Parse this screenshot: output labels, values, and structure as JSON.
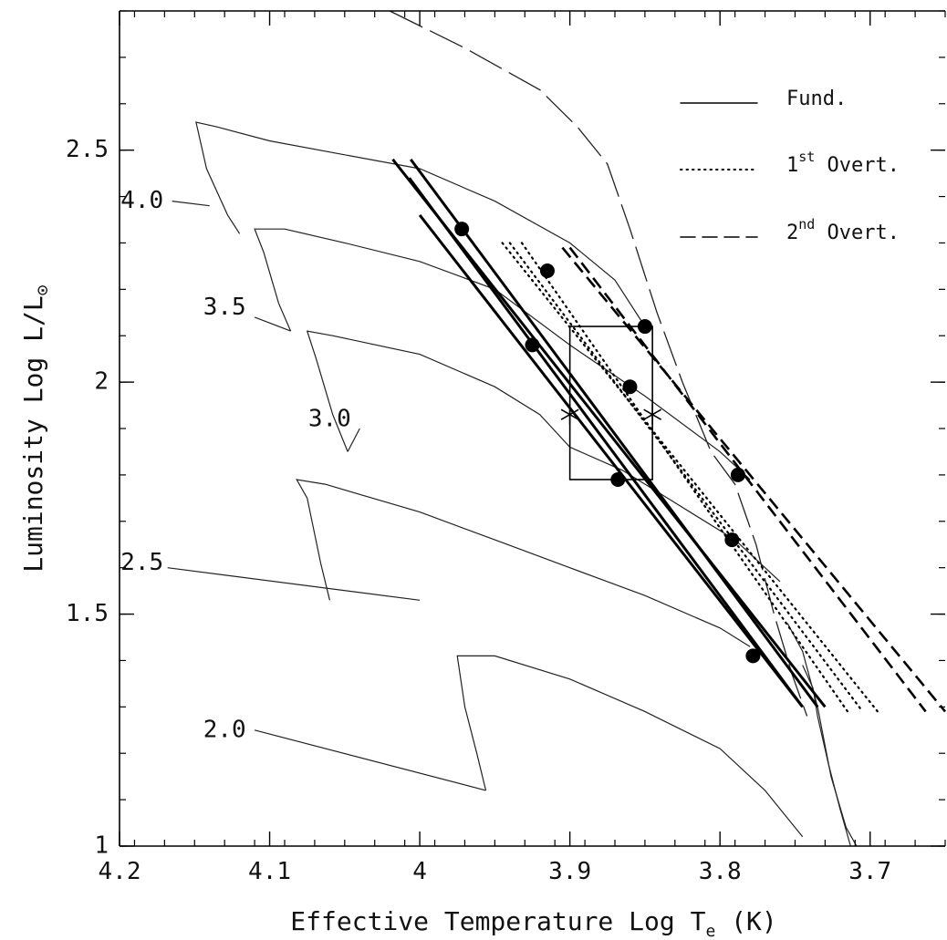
{
  "chart_data": {
    "type": "line",
    "xlabel": {
      "main": "Effective Temperature Log T",
      "sub": "e",
      "unit": " (K)"
    },
    "ylabel": {
      "main": "Luminosity Log L/L",
      "sub": "⊙"
    },
    "xlim": [
      4.2,
      3.65
    ],
    "ylim": [
      1.0,
      2.8
    ],
    "x_reversed": true,
    "xticks": [
      {
        "v": 4.2,
        "label": "4.2"
      },
      {
        "v": 4.1,
        "label": "4.1"
      },
      {
        "v": 4.0,
        "label": "4"
      },
      {
        "v": 3.9,
        "label": "3.9"
      },
      {
        "v": 3.8,
        "label": "3.8"
      },
      {
        "v": 3.7,
        "label": "3.7"
      }
    ],
    "yticks": [
      {
        "v": 1.0,
        "label": "1"
      },
      {
        "v": 1.5,
        "label": "1.5"
      },
      {
        "v": 2.0,
        "label": "2"
      },
      {
        "v": 2.5,
        "label": "2.5"
      }
    ],
    "grid": false,
    "legend_position": "top-right",
    "legend": [
      {
        "style": "solid",
        "label": "Fund.",
        "sup": ""
      },
      {
        "style": "dotted",
        "label": " Overt.",
        "prefix": "1",
        "sup": "st"
      },
      {
        "style": "dashed",
        "label": " Overt.",
        "prefix": "2",
        "sup": "nd"
      }
    ],
    "tracks": [
      {
        "mass": "4.0",
        "label_at": [
          4.185,
          2.39
        ],
        "leader": [
          [
            4.165,
            2.39
          ],
          [
            4.14,
            2.38
          ]
        ],
        "points": [
          [
            4.12,
            2.32
          ],
          [
            4.128,
            2.36
          ],
          [
            4.142,
            2.46
          ],
          [
            4.149,
            2.56
          ],
          [
            4.135,
            2.55
          ],
          [
            4.1,
            2.52
          ],
          [
            4.05,
            2.49
          ],
          [
            4.0,
            2.46
          ],
          [
            3.95,
            2.39
          ],
          [
            3.9,
            2.3
          ],
          [
            3.87,
            2.22
          ],
          [
            3.85,
            2.12
          ]
        ]
      },
      {
        "mass": "3.5",
        "label_at": [
          4.13,
          2.16
        ],
        "leader": [
          [
            4.11,
            2.14
          ],
          [
            4.086,
            2.11
          ]
        ],
        "points": [
          [
            4.086,
            2.11
          ],
          [
            4.094,
            2.17
          ],
          [
            4.104,
            2.28
          ],
          [
            4.11,
            2.33
          ],
          [
            4.09,
            2.33
          ],
          [
            4.05,
            2.3
          ],
          [
            4.0,
            2.26
          ],
          [
            3.95,
            2.2
          ],
          [
            3.9,
            2.08
          ],
          [
            3.85,
            1.97
          ],
          [
            3.8,
            1.85
          ],
          [
            3.78,
            1.79
          ]
        ]
      },
      {
        "mass": "3.0",
        "label_at": [
          4.06,
          1.92
        ],
        "leader": [
          [
            4.04,
            1.9
          ],
          [
            4.048,
            1.85
          ]
        ],
        "points": [
          [
            4.048,
            1.85
          ],
          [
            4.058,
            1.93
          ],
          [
            4.069,
            2.05
          ],
          [
            4.075,
            2.11
          ],
          [
            4.058,
            2.1
          ],
          [
            4.0,
            2.06
          ],
          [
            3.95,
            1.99
          ],
          [
            3.92,
            1.93
          ],
          [
            3.9,
            1.86
          ],
          [
            3.865,
            1.81
          ],
          [
            3.83,
            1.74
          ],
          [
            3.79,
            1.66
          ],
          [
            3.76,
            1.57
          ]
        ]
      },
      {
        "mass": "2.5",
        "label_at": [
          4.185,
          1.61
        ],
        "leader": [
          [
            4.168,
            1.6
          ],
          [
            4.0,
            1.53
          ]
        ],
        "points": [
          [
            4.06,
            1.53
          ],
          [
            4.066,
            1.61
          ],
          [
            4.075,
            1.75
          ],
          [
            4.082,
            1.79
          ],
          [
            4.063,
            1.78
          ],
          [
            4.0,
            1.72
          ],
          [
            3.95,
            1.66
          ],
          [
            3.9,
            1.6
          ],
          [
            3.85,
            1.54
          ],
          [
            3.8,
            1.47
          ],
          [
            3.78,
            1.43
          ]
        ]
      },
      {
        "mass": "2.0",
        "label_at": [
          4.13,
          1.25
        ],
        "leader": [
          [
            4.11,
            1.25
          ],
          [
            3.956,
            1.12
          ]
        ],
        "points": [
          [
            3.956,
            1.12
          ],
          [
            3.962,
            1.2
          ],
          [
            3.97,
            1.3
          ],
          [
            3.975,
            1.41
          ],
          [
            3.95,
            1.41
          ],
          [
            3.9,
            1.36
          ],
          [
            3.85,
            1.29
          ],
          [
            3.8,
            1.21
          ],
          [
            3.77,
            1.12
          ],
          [
            3.745,
            1.02
          ]
        ]
      },
      {
        "mass": "",
        "label_at": null,
        "leader": null,
        "points": [
          [
            3.745,
            1.39
          ],
          [
            3.738,
            1.34
          ],
          [
            3.735,
            1.28
          ],
          [
            3.728,
            1.18
          ],
          [
            3.72,
            1.08
          ],
          [
            3.713,
            1.0
          ]
        ]
      },
      {
        "mass": "",
        "label_at": null,
        "leader": null,
        "points": [
          [
            3.755,
            1.48
          ],
          [
            3.745,
            1.42
          ],
          [
            3.735,
            1.3
          ],
          [
            3.726,
            1.15
          ],
          [
            3.716,
            1.04
          ],
          [
            3.709,
            1.0
          ]
        ]
      }
    ],
    "blue_edge_track": {
      "style": "long-dash",
      "points": [
        [
          4.02,
          2.8
        ],
        [
          3.97,
          2.72
        ],
        [
          3.92,
          2.63
        ],
        [
          3.895,
          2.55
        ],
        [
          3.875,
          2.47
        ],
        [
          3.86,
          2.33
        ],
        [
          3.842,
          2.15
        ],
        [
          3.825,
          2.0
        ],
        [
          3.806,
          1.85
        ],
        [
          3.79,
          1.78
        ],
        [
          3.776,
          1.65
        ],
        [
          3.764,
          1.5
        ],
        [
          3.752,
          1.37
        ],
        [
          3.742,
          1.28
        ]
      ]
    },
    "instability_lines": {
      "fundamental": [
        {
          "from": [
            4.018,
            2.48
          ],
          "to": [
            3.73,
            1.3
          ]
        },
        {
          "from": [
            4.006,
            2.48
          ],
          "to": [
            3.735,
            1.3
          ]
        },
        {
          "from": [
            4.007,
            2.44
          ],
          "to": [
            3.745,
            1.3
          ]
        },
        {
          "from": [
            4.0,
            2.36
          ],
          "to": [
            3.745,
            1.3
          ]
        }
      ],
      "first_overtone": [
        {
          "from": [
            3.945,
            2.3
          ],
          "to": [
            3.695,
            1.29
          ]
        },
        {
          "from": [
            3.94,
            2.3
          ],
          "to": [
            3.705,
            1.29
          ]
        },
        {
          "from": [
            3.932,
            2.3
          ],
          "to": [
            3.715,
            1.29
          ]
        }
      ],
      "second_overtone": [
        {
          "from": [
            3.905,
            2.29
          ],
          "to": [
            3.65,
            1.29
          ]
        },
        {
          "from": [
            3.9,
            2.29
          ],
          "to": [
            3.663,
            1.29
          ]
        }
      ]
    },
    "filled_points": [
      [
        3.972,
        2.33
      ],
      [
        3.915,
        2.24
      ],
      [
        3.85,
        2.12
      ],
      [
        3.925,
        2.08
      ],
      [
        3.86,
        1.99
      ],
      [
        3.788,
        1.8
      ],
      [
        3.868,
        1.79
      ],
      [
        3.792,
        1.66
      ],
      [
        3.778,
        1.41
      ]
    ],
    "star_points": [
      [
        3.9,
        1.93
      ],
      [
        3.845,
        1.93
      ]
    ],
    "box": {
      "x": [
        3.9,
        3.845
      ],
      "y": [
        1.79,
        2.12
      ]
    }
  }
}
